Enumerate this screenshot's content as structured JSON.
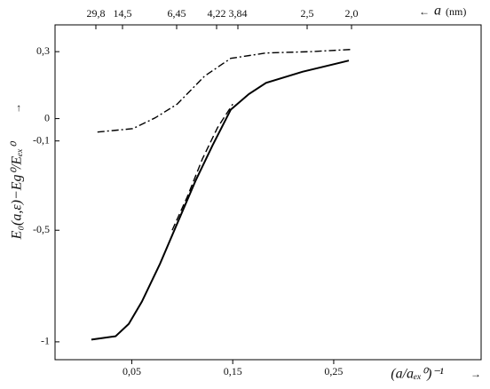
{
  "chart_data": {
    "type": "line",
    "xlabel": "(a/aₑₓ⁰)⁻¹",
    "ylabel": "E₀(a,ε)−Eg⁰/Eₑₓ⁰",
    "xlim": [
      -0.026,
      0.396
    ],
    "ylim": [
      -1.08,
      0.42
    ],
    "xticks": [
      {
        "value": 0.05,
        "label": "0,05"
      },
      {
        "value": 0.15,
        "label": "0,15"
      },
      {
        "value": 0.25,
        "label": "0,25"
      }
    ],
    "yticks": [
      {
        "value": 0.3,
        "label": "0,3"
      },
      0,
      {
        "value": -0.1,
        "label": "-0,1"
      },
      {
        "value": -0.5,
        "label": "-0,5"
      },
      -1
    ],
    "top_axis": {
      "label": "a",
      "unit": "(nm)",
      "ticks": [
        "29,8",
        "14,5",
        "6,45",
        "4,22",
        "3,84",
        "2,5",
        "2,0"
      ]
    },
    "series": [
      {
        "color": "#000000",
        "dash": "solid",
        "x": [
          0.01,
          0.034,
          0.047,
          0.06,
          0.078,
          0.095,
          0.113,
          0.13,
          0.148,
          0.166,
          0.183,
          0.219,
          0.265
        ],
        "values": [
          -0.99,
          -0.975,
          -0.92,
          -0.82,
          -0.65,
          -0.47,
          -0.28,
          -0.12,
          0.04,
          0.11,
          0.16,
          0.21,
          0.26
        ]
      },
      {
        "color": "#000000",
        "dash": "dashed",
        "x": [
          0.09,
          0.105,
          0.12,
          0.135,
          0.15
        ],
        "values": [
          -0.5,
          -0.35,
          -0.18,
          -0.04,
          0.065
        ]
      },
      {
        "color": "#000000",
        "dash": "dashdot",
        "x": [
          0.016,
          0.051,
          0.073,
          0.095,
          0.122,
          0.148,
          0.183,
          0.227,
          0.268
        ],
        "values": [
          -0.06,
          -0.045,
          0.003,
          0.065,
          0.19,
          0.27,
          0.294,
          0.3,
          0.31
        ]
      }
    ]
  }
}
